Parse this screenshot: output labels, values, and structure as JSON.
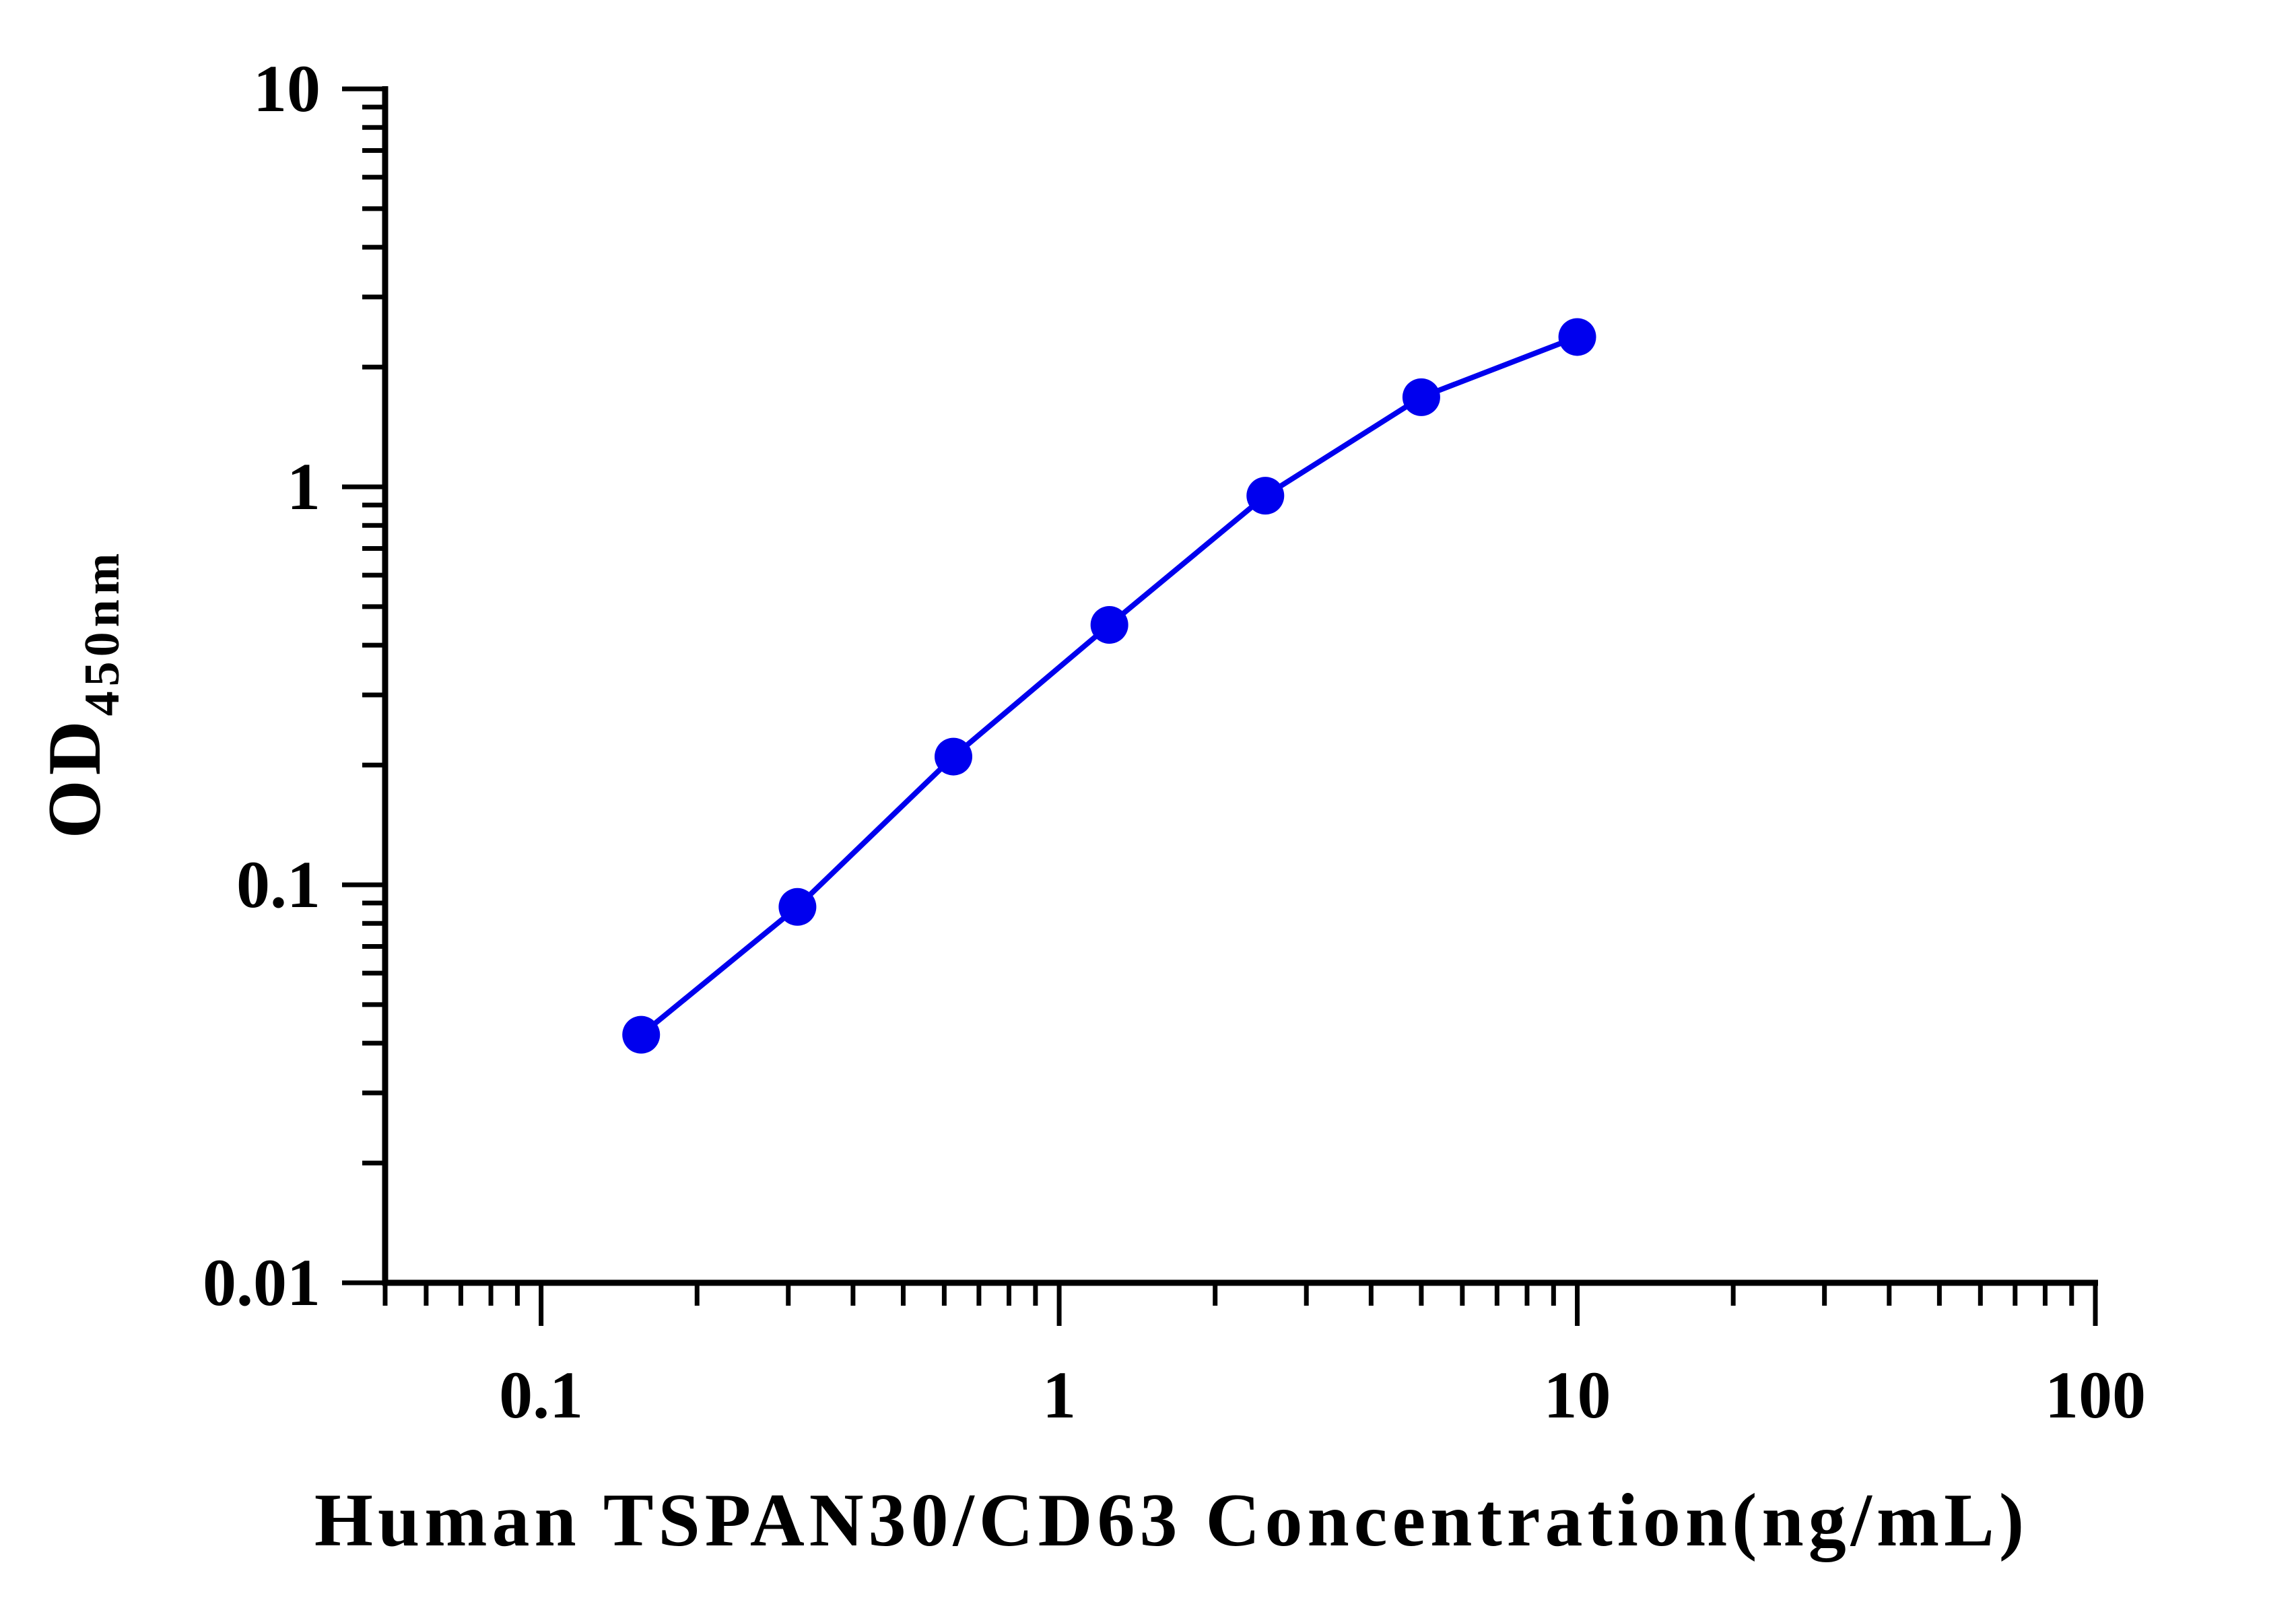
{
  "chart_data": {
    "type": "line",
    "title": "",
    "xlabel": "Human TSPAN30/CD63 Concentration(ng/mL)",
    "ylabel": {
      "main": "OD",
      "subscript": "450nm"
    },
    "x_scale": "log",
    "y_scale": "log",
    "xlim": [
      0.05,
      100
    ],
    "ylim": [
      0.01,
      10
    ],
    "x_ticks": [
      "0.1",
      "1",
      "10",
      "100"
    ],
    "y_ticks": [
      "0.01",
      "0.1",
      "1",
      "10"
    ],
    "grid": false,
    "series": [
      {
        "x": [
          0.156,
          0.3125,
          0.625,
          1.25,
          2.5,
          5,
          10
        ],
        "y": [
          0.042,
          0.088,
          0.21,
          0.45,
          0.95,
          1.68,
          2.38
        ],
        "color": "#0000ee",
        "marker": "circle"
      }
    ]
  }
}
